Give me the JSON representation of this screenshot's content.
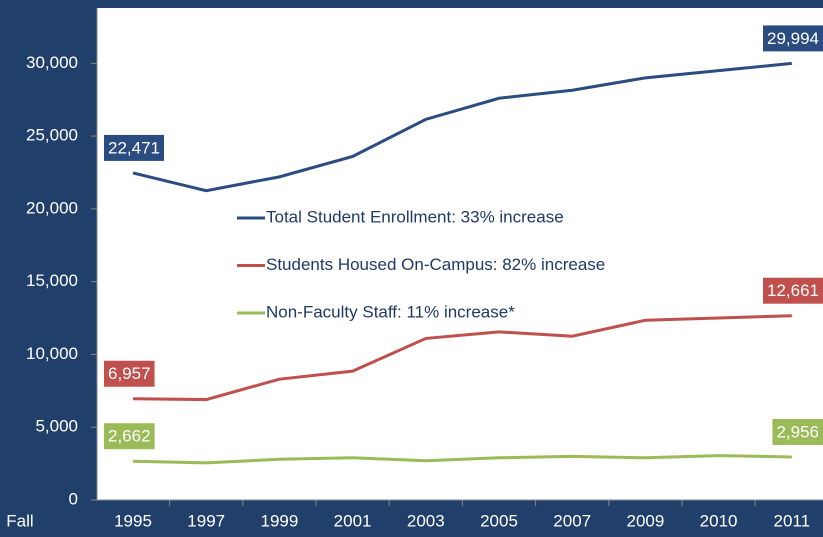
{
  "chart_data": {
    "type": "line",
    "x_label": "Fall",
    "categories": [
      "1995",
      "1997",
      "1999",
      "2001",
      "2003",
      "2005",
      "2007",
      "2009",
      "2010",
      "2011"
    ],
    "series": [
      {
        "name": "Total Student Enrollment:  33% increase",
        "color": "#2b4c80",
        "values": [
          22471,
          21250,
          22200,
          23600,
          26150,
          27600,
          28150,
          29000,
          29500,
          29994
        ],
        "value_labels": [
          "22,471",
          null,
          null,
          null,
          null,
          null,
          null,
          null,
          null,
          "29,994"
        ]
      },
      {
        "name": "Students Housed On-Campus:  82% increase",
        "color": "#c0504d",
        "values": [
          6957,
          6900,
          8300,
          8850,
          11100,
          11550,
          11250,
          12350,
          12500,
          12661
        ],
        "value_labels": [
          "6,957",
          null,
          null,
          null,
          null,
          null,
          null,
          null,
          null,
          "12,661"
        ]
      },
      {
        "name": "Non-Faculty Staff:  11% increase*",
        "color": "#9bbb59",
        "values": [
          2662,
          2550,
          2800,
          2900,
          2700,
          2900,
          3000,
          2900,
          3050,
          2956
        ],
        "value_labels": [
          "2,662",
          null,
          null,
          null,
          null,
          null,
          null,
          null,
          null,
          "2,956"
        ]
      }
    ],
    "ylim": [
      0,
      33800
    ],
    "yticks": [
      0,
      {
        "value": 5000,
        "label": "5,000"
      },
      {
        "value": 10000,
        "label": "10,000"
      },
      {
        "value": 15000,
        "label": "15,000"
      },
      {
        "value": 20000,
        "label": "20,000"
      },
      {
        "value": 25000,
        "label": "25,000"
      },
      {
        "value": 30000,
        "label": "30,000"
      }
    ],
    "grid": false
  }
}
